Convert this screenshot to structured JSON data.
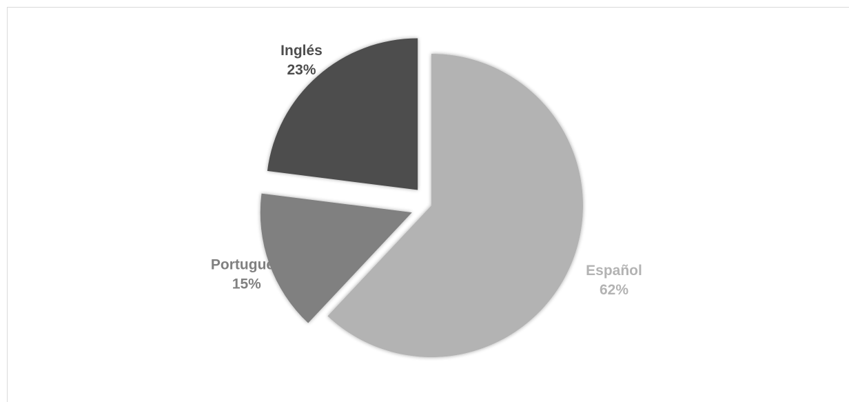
{
  "chart_data": {
    "type": "pie",
    "title": "",
    "legend": "none",
    "start_angle_deg": 0,
    "direction": "clockwise",
    "slices": [
      {
        "name": "Español",
        "value": 62,
        "label": "62%",
        "color": "#b3b3b3",
        "label_color": "#b3b3b3",
        "exploded": false
      },
      {
        "name": "Portugués",
        "value": 15,
        "label": "15%",
        "color": "#808080",
        "label_color": "#808080",
        "exploded": true
      },
      {
        "name": "Inglés",
        "value": 23,
        "label": "23%",
        "color": "#4d4d4d",
        "label_color": "#4d4d4d",
        "exploded": true
      }
    ]
  }
}
